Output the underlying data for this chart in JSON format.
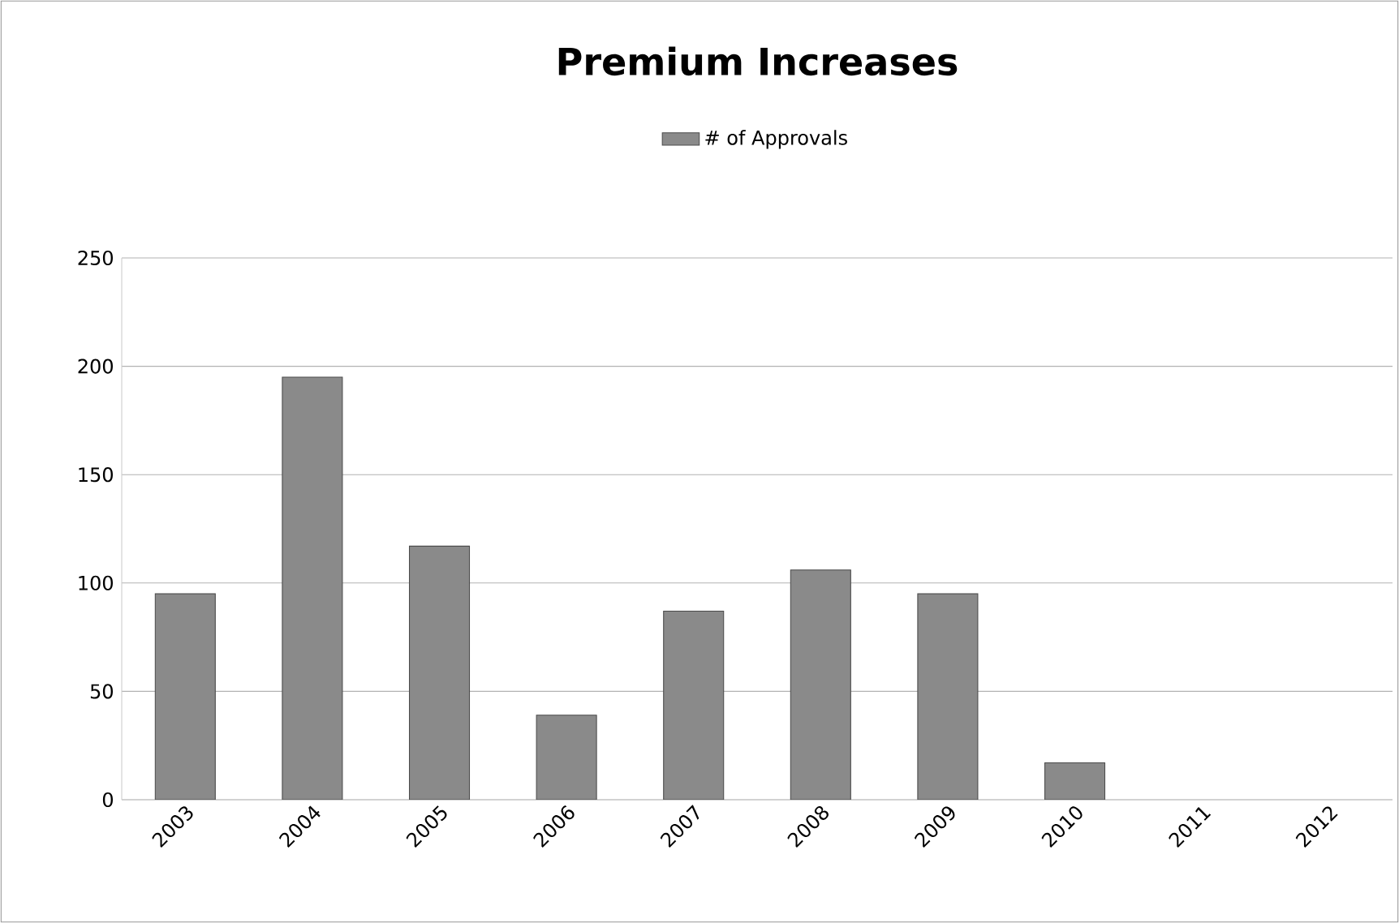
{
  "chart_data": {
    "type": "bar",
    "title": "Premium Increases",
    "categories": [
      "2003",
      "2004",
      "2005",
      "2006",
      "2007",
      "2008",
      "2009",
      "2010",
      "2011",
      "2012"
    ],
    "series": [
      {
        "name": "# of Approvals",
        "color": "#8a8a8a",
        "values": [
          95,
          195,
          117,
          39,
          87,
          106,
          95,
          17,
          null,
          null
        ]
      }
    ],
    "ylim": [
      0,
      250
    ],
    "yticks": [
      0,
      50,
      100,
      150,
      200,
      250
    ],
    "grid": "y",
    "legend": "top"
  }
}
